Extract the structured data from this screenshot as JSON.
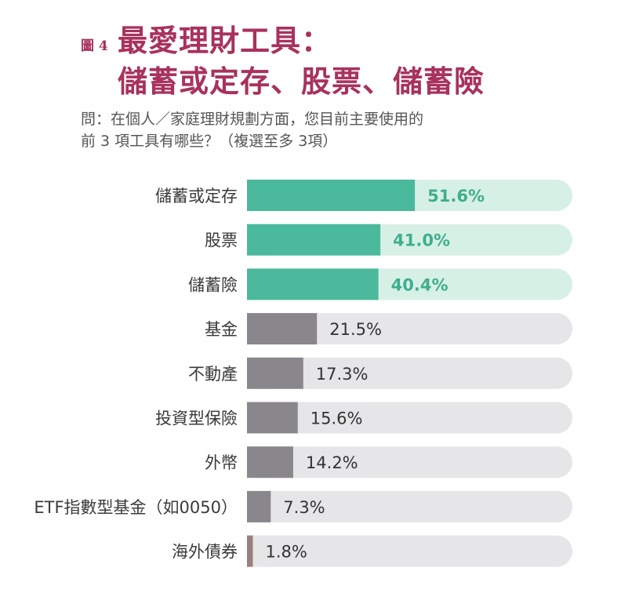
{
  "figure_label": "圖 4",
  "title_line1": "最愛理財工具：",
  "title_line2": "儲蓄或定存、股票、儲蓄險",
  "question_line1": "問：在個人／家庭理財規劃方面，您目前主要使用的",
  "question_line2": "前 3 項工具有哪些？（複選至多 3項）",
  "colors": {
    "title": "#a8325c",
    "highlight_bar": "#4bb99b",
    "highlight_track": "#d7f0e6",
    "highlight_text": "#3fae8e",
    "normal_bar": "#8a878c",
    "normal_track": "#e6e5e7",
    "last_bar": "#9a7e7e",
    "normal_text": "#333333"
  },
  "chart_data": {
    "type": "bar",
    "orientation": "horizontal",
    "categories": [
      "儲蓄或定存",
      "股票",
      "儲蓄險",
      "基金",
      "不動產",
      "投資型保險",
      "外幣",
      "ETF指數型基金（如0050）",
      "海外債券"
    ],
    "values": [
      51.6,
      41.0,
      40.4,
      21.5,
      17.3,
      15.6,
      14.2,
      7.3,
      1.8
    ],
    "value_labels": [
      "51.6%",
      "41.0%",
      "40.4%",
      "21.5%",
      "17.3%",
      "15.6%",
      "14.2%",
      "7.3%",
      "1.8%"
    ],
    "highlighted": [
      true,
      true,
      true,
      false,
      false,
      false,
      false,
      false,
      false
    ],
    "unit": "%",
    "xlim": [
      0,
      100
    ]
  }
}
